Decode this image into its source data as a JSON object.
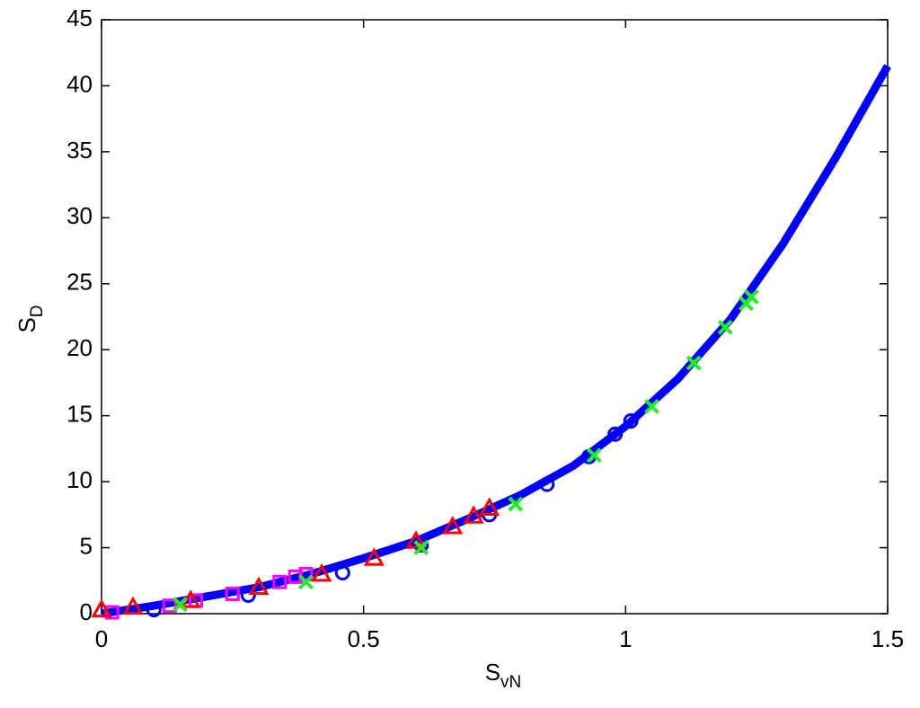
{
  "chart_data": {
    "type": "line",
    "xlabel": {
      "text": "S",
      "subscript": "vN"
    },
    "ylabel": {
      "text": "S",
      "subscript": "D"
    },
    "xlim": [
      0,
      1.5
    ],
    "xticks": [
      0,
      0.5,
      1,
      1.5
    ],
    "ylim": [
      0,
      45
    ],
    "yticks": [
      0,
      5,
      10,
      15,
      20,
      25,
      30,
      35,
      40,
      45
    ],
    "grid": false,
    "series": [
      {
        "marker": "line",
        "color": "#0000ff",
        "x": [
          0,
          0.1,
          0.2,
          0.3,
          0.4,
          0.5,
          0.6,
          0.7,
          0.8,
          0.9,
          1.0,
          1.1,
          1.2,
          1.3,
          1.4,
          1.5
        ],
        "values": [
          0,
          0.6,
          1.3,
          2.0,
          3.0,
          4.2,
          5.5,
          7.2,
          9.0,
          11.2,
          14.2,
          17.8,
          22.3,
          28,
          34.5,
          41.5
        ]
      },
      {
        "marker": "circle",
        "color": "#0000ff",
        "x": [
          0.1,
          0.28,
          0.46,
          0.61,
          0.74,
          0.85,
          0.93,
          0.98,
          1.01
        ],
        "values": [
          0.3,
          1.4,
          3.1,
          5.2,
          7.5,
          9.8,
          11.9,
          13.6,
          14.6
        ]
      },
      {
        "marker": "square",
        "color": "#ff00ff",
        "x": [
          0.02,
          0.13,
          0.18,
          0.25,
          0.34,
          0.37,
          0.39
        ],
        "values": [
          0.1,
          0.6,
          1.0,
          1.5,
          2.4,
          2.8,
          3.0
        ]
      },
      {
        "marker": "triangle",
        "color": "#ff0000",
        "x": [
          0,
          0.06,
          0.17,
          0.3,
          0.42,
          0.52,
          0.6,
          0.67,
          0.71,
          0.74
        ],
        "values": [
          0.3,
          0.5,
          1.0,
          2.0,
          3.0,
          4.2,
          5.5,
          6.6,
          7.4,
          8.0
        ]
      },
      {
        "marker": "x",
        "color": "#22ee22",
        "x": [
          0.15,
          0.39,
          0.61,
          0.79,
          0.94,
          1.05,
          1.13,
          1.19,
          1.23,
          1.24
        ],
        "values": [
          0.7,
          2.4,
          5.0,
          8.3,
          12,
          15.7,
          19,
          21.7,
          23.5,
          24
        ]
      }
    ]
  }
}
